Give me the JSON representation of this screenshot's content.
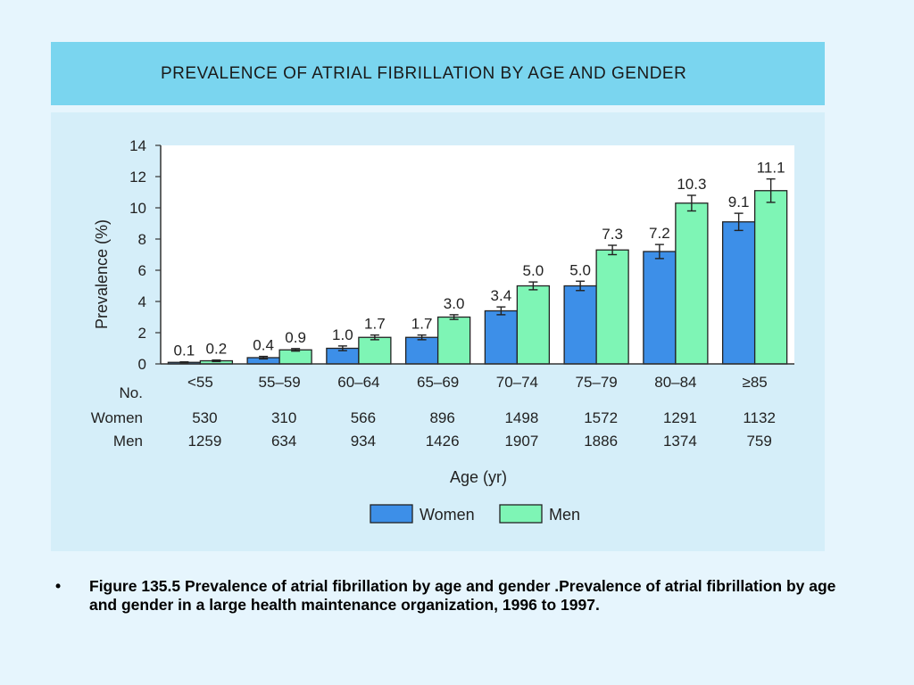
{
  "slide": {
    "title": "PREVALENCE OF ATRIAL FIBRILLATION BY AGE AND GENDER",
    "bullet": "•",
    "caption": "Figure 135.5  Prevalence of atrial fibrillation by age and gender .Prevalence of atrial fibrillation by age and gender in a large health maintenance organization, 1996 to 1997."
  },
  "colors": {
    "women": "#3d8fe8",
    "men": "#7ef5b5",
    "panel": "#d5eef9",
    "title_bar": "#7ad5ef",
    "background": "#e6f5fd"
  },
  "chart_data": {
    "type": "bar",
    "title": "PREVALENCE OF ATRIAL FIBRILLATION BY AGE AND GENDER",
    "xlabel": "Age (yr)",
    "ylabel": "Prevalence (%)",
    "ylim": [
      0,
      14
    ],
    "yticks": [
      "0",
      "2",
      "4",
      "6",
      "8",
      "10",
      "12",
      "14"
    ],
    "categories": [
      "<55",
      "55–59",
      "60–64",
      "65–69",
      "70–74",
      "75–79",
      "80–84",
      "≥85"
    ],
    "series": [
      {
        "name": "Women",
        "values": [
          0.1,
          0.4,
          1.0,
          1.7,
          3.4,
          5.0,
          7.2,
          9.1
        ],
        "labels": [
          "0.1",
          "0.4",
          "1.0",
          "1.7",
          "3.4",
          "5.0",
          "7.2",
          "9.1"
        ],
        "error": [
          0.03,
          0.08,
          0.15,
          0.15,
          0.25,
          0.3,
          0.45,
          0.55
        ]
      },
      {
        "name": "Men",
        "values": [
          0.2,
          0.9,
          1.7,
          3.0,
          5.0,
          7.3,
          10.3,
          11.1
        ],
        "labels": [
          "0.2",
          "0.9",
          "1.7",
          "3.0",
          "5.0",
          "7.3",
          "10.3",
          "11.1"
        ],
        "error": [
          0.05,
          0.08,
          0.15,
          0.15,
          0.25,
          0.3,
          0.5,
          0.75
        ]
      }
    ],
    "counts_header": "No.",
    "counts": [
      {
        "name": "Women",
        "values": [
          "530",
          "310",
          "566",
          "896",
          "1498",
          "1572",
          "1291",
          "1132"
        ]
      },
      {
        "name": "Men",
        "values": [
          "1259",
          "634",
          "934",
          "1426",
          "1907",
          "1886",
          "1374",
          "759"
        ]
      }
    ],
    "grid": false,
    "legend": "bottom-center"
  }
}
